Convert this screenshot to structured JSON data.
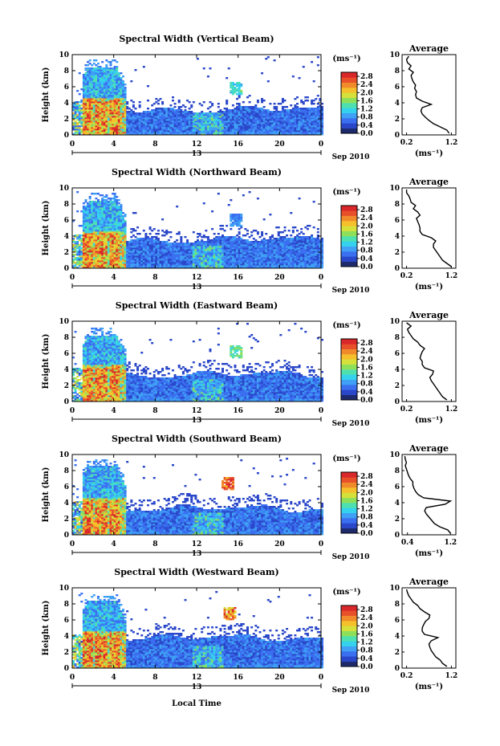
{
  "figure": {
    "xlabel": "Local Time",
    "date_label": "Sep 2010",
    "colorbar_unit": "(ms⁻¹)",
    "average_title": "Average",
    "average_xlabel": "(ms⁻¹)",
    "ylabel": "Height (km)",
    "day_marker": "13"
  },
  "colormap": [
    "#1e2a6e",
    "#2a47c9",
    "#3a6ff0",
    "#3fa0f5",
    "#35d2ee",
    "#4fe0b0",
    "#8ee05a",
    "#d6e03a",
    "#f5c02c",
    "#f08a2a",
    "#e8502a",
    "#d9272a"
  ],
  "chart_data": [
    {
      "type": "heatmap",
      "title": "Spectral Width (Vertical Beam)",
      "ylabel": "Height (km)",
      "xlim": [
        0,
        24
      ],
      "ylim": [
        0,
        10
      ],
      "xticks": [
        "0",
        "4",
        "8",
        "12",
        "16",
        "20",
        "0"
      ],
      "yticks": [
        "0",
        "2",
        "4",
        "6",
        "8",
        "10"
      ],
      "colorbar": {
        "ticks": [
          "0.0",
          "0.4",
          "0.8",
          "1.2",
          "1.6",
          "2.0",
          "2.4",
          "2.8"
        ],
        "range": [
          0,
          3.0
        ]
      },
      "features": {
        "convective_top_km": 8.5,
        "cloud_top_km": 3.2,
        "patch_hour": 15.8,
        "patch_km": 5.8,
        "patch_value": 1.4
      },
      "average": {
        "title": "Average",
        "xlabel": "(ms⁻¹)",
        "xticks": [
          "0.2",
          "1.2"
        ],
        "xlim": [
          0.1,
          1.3
        ],
        "height_km": [
          0.2,
          0.6,
          1.0,
          1.4,
          1.8,
          2.2,
          2.6,
          3.0,
          3.4,
          3.8,
          4.2,
          4.6,
          5.0,
          5.4,
          5.8,
          6.2,
          6.6,
          7.0,
          7.4,
          7.8,
          8.2,
          8.6,
          9.0,
          9.4,
          9.8
        ],
        "values": [
          1.15,
          1.1,
          0.95,
          0.8,
          0.7,
          0.62,
          0.55,
          0.52,
          0.55,
          0.75,
          0.55,
          0.42,
          0.4,
          0.42,
          0.38,
          0.4,
          0.35,
          0.32,
          0.3,
          0.35,
          0.25,
          0.3,
          0.22,
          0.2,
          0.25
        ]
      }
    },
    {
      "type": "heatmap",
      "title": "Spectral Width (Northward Beam)",
      "ylabel": "Height (km)",
      "xlim": [
        0,
        24
      ],
      "ylim": [
        0,
        10
      ],
      "xticks": [
        "0",
        "4",
        "8",
        "12",
        "16",
        "20",
        "0"
      ],
      "yticks": [
        "0",
        "2",
        "4",
        "6",
        "8",
        "10"
      ],
      "colorbar": {
        "ticks": [
          "0.0",
          "0.4",
          "0.8",
          "1.2",
          "1.6",
          "2.0",
          "2.4",
          "2.8"
        ],
        "range": [
          0,
          3.0
        ]
      },
      "features": {
        "convective_top_km": 8.5,
        "cloud_top_km": 3.6,
        "patch_hour": 15.8,
        "patch_km": 6.0,
        "patch_value": 0.9
      },
      "average": {
        "title": "Average",
        "xlabel": "(ms⁻¹)",
        "xticks": [
          "0.2",
          "1.2"
        ],
        "xlim": [
          0.1,
          1.3
        ],
        "height_km": [
          0.2,
          0.6,
          1.0,
          1.4,
          1.8,
          2.2,
          2.6,
          3.0,
          3.4,
          3.8,
          4.2,
          4.6,
          5.0,
          5.4,
          5.8,
          6.2,
          6.6,
          7.0,
          7.4,
          7.8,
          8.2,
          8.6,
          9.0,
          9.4,
          9.8
        ],
        "values": [
          1.2,
          1.1,
          1.0,
          0.95,
          0.9,
          0.85,
          0.8,
          0.8,
          0.85,
          0.75,
          0.55,
          0.5,
          0.5,
          0.48,
          0.45,
          0.42,
          0.5,
          0.45,
          0.35,
          0.4,
          0.3,
          0.28,
          0.25,
          0.2,
          0.2
        ]
      }
    },
    {
      "type": "heatmap",
      "title": "Spectral Width (Eastward Beam)",
      "ylabel": "Height (km)",
      "xlim": [
        0,
        24
      ],
      "ylim": [
        0,
        10
      ],
      "xticks": [
        "0",
        "4",
        "8",
        "12",
        "16",
        "20",
        "0"
      ],
      "yticks": [
        "0",
        "2",
        "4",
        "6",
        "8",
        "10"
      ],
      "colorbar": {
        "ticks": [
          "0.0",
          "0.4",
          "0.8",
          "1.2",
          "1.6",
          "2.0",
          "2.4",
          "2.8"
        ],
        "range": [
          0,
          3.0
        ]
      },
      "features": {
        "convective_top_km": 8.3,
        "cloud_top_km": 3.4,
        "patch_hour": 15.8,
        "patch_km": 6.2,
        "patch_value": 1.6
      },
      "average": {
        "title": "Average",
        "xlabel": "(ms⁻¹)",
        "xticks": [
          "0.2",
          "1.2"
        ],
        "xlim": [
          0.1,
          1.3
        ],
        "height_km": [
          0.2,
          0.6,
          1.0,
          1.4,
          1.8,
          2.2,
          2.6,
          3.0,
          3.4,
          3.8,
          4.2,
          4.6,
          5.0,
          5.4,
          5.8,
          6.2,
          6.6,
          7.0,
          7.4,
          7.8,
          8.2,
          8.6,
          9.0,
          9.4,
          9.8
        ],
        "values": [
          1.1,
          1.0,
          0.95,
          0.9,
          0.85,
          0.8,
          0.75,
          0.72,
          0.78,
          0.8,
          0.6,
          0.55,
          0.55,
          0.5,
          0.52,
          0.55,
          0.6,
          0.5,
          0.45,
          0.35,
          0.3,
          0.25,
          0.22,
          0.3,
          0.2
        ]
      }
    },
    {
      "type": "heatmap",
      "title": "Spectral Width (Southward Beam)",
      "ylabel": "Height (km)",
      "xlim": [
        0,
        24
      ],
      "ylim": [
        0,
        10
      ],
      "xticks": [
        "0",
        "4",
        "8",
        "12",
        "16",
        "20",
        "0"
      ],
      "yticks": [
        "0",
        "2",
        "4",
        "6",
        "8",
        "10"
      ],
      "colorbar": {
        "ticks": [
          "0.0",
          "0.4",
          "0.8",
          "1.2",
          "1.6",
          "2.0",
          "2.4",
          "2.8"
        ],
        "range": [
          0,
          3.0
        ]
      },
      "features": {
        "convective_top_km": 8.6,
        "cloud_top_km": 3.3,
        "patch_hour": 15.0,
        "patch_km": 6.5,
        "patch_value": 2.8
      },
      "average": {
        "title": "Average",
        "xlabel": "(ms⁻¹)",
        "xticks": [
          "0.4",
          "1.2"
        ],
        "xlim": [
          0.3,
          1.3
        ],
        "height_km": [
          0.2,
          0.6,
          1.0,
          1.4,
          1.8,
          2.2,
          2.6,
          3.0,
          3.4,
          3.8,
          4.2,
          4.6,
          5.0,
          5.4,
          5.8,
          6.2,
          6.6,
          7.0,
          7.4,
          7.8,
          8.2,
          8.6,
          9.0,
          9.4,
          9.8
        ],
        "values": [
          1.2,
          1.15,
          1.0,
          0.9,
          0.85,
          0.8,
          0.75,
          0.72,
          0.75,
          1.1,
          1.2,
          0.7,
          0.6,
          0.55,
          0.52,
          0.5,
          0.5,
          0.45,
          0.42,
          0.4,
          0.38,
          0.36,
          0.38,
          0.36,
          0.35
        ]
      }
    },
    {
      "type": "heatmap",
      "title": "Spectral Width (Westward Beam)",
      "ylabel": "Height (km)",
      "xlim": [
        0,
        24
      ],
      "ylim": [
        0,
        10
      ],
      "xticks": [
        "0",
        "4",
        "8",
        "12",
        "16",
        "20",
        "0"
      ],
      "yticks": [
        "0",
        "2",
        "4",
        "6",
        "8",
        "10"
      ],
      "colorbar": {
        "ticks": [
          "0.0",
          "0.4",
          "0.8",
          "1.2",
          "1.6",
          "2.0",
          "2.4",
          "2.8"
        ],
        "range": [
          0,
          3.0
        ]
      },
      "features": {
        "convective_top_km": 8.4,
        "cloud_top_km": 3.8,
        "patch_hour": 15.2,
        "patch_km": 6.8,
        "patch_value": 2.6
      },
      "average": {
        "title": "Average",
        "xlabel": "(ms⁻¹)",
        "xticks": [
          "0.2",
          "1.2"
        ],
        "xlim": [
          0.1,
          1.3
        ],
        "height_km": [
          0.2,
          0.6,
          1.0,
          1.4,
          1.8,
          2.2,
          2.6,
          3.0,
          3.4,
          3.8,
          4.2,
          4.6,
          5.0,
          5.4,
          5.8,
          6.2,
          6.6,
          7.0,
          7.4,
          7.8,
          8.2,
          8.6,
          9.0,
          9.4,
          9.8
        ],
        "values": [
          1.1,
          1.0,
          0.95,
          0.85,
          0.8,
          0.75,
          0.72,
          0.7,
          0.75,
          0.9,
          0.6,
          0.55,
          0.55,
          0.58,
          0.62,
          0.7,
          0.72,
          0.6,
          0.5,
          0.45,
          0.35,
          0.3,
          0.25,
          0.22,
          0.2
        ]
      }
    }
  ]
}
